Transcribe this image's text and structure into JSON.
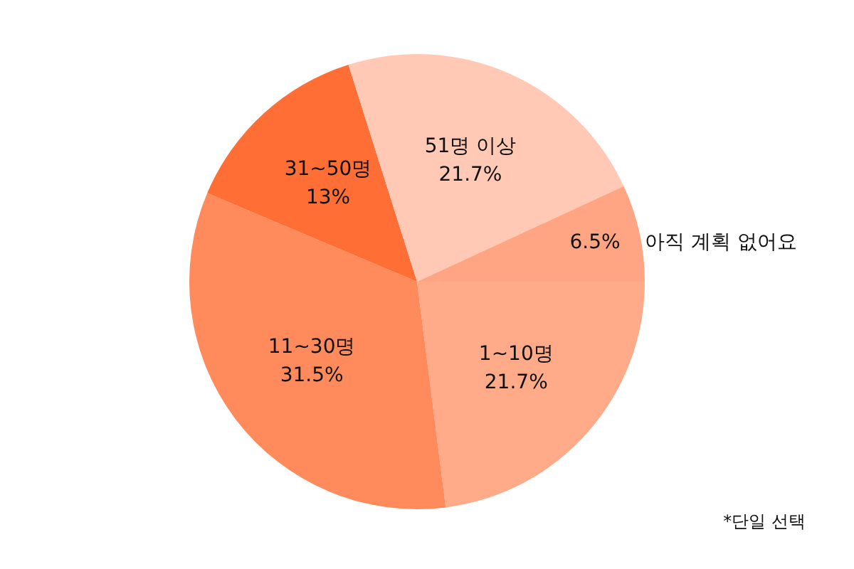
{
  "chart_data": {
    "type": "pie",
    "categories": [
      "1~10명",
      "11~30명",
      "31~50명",
      "51명 이상",
      "아직 계획 없어요"
    ],
    "values": [
      21.7,
      31.5,
      13,
      21.7,
      6.5
    ],
    "colors": [
      "#ffaa88",
      "#ff8a5c",
      "#ff6e35",
      "#ffc9b5",
      "#ffa584"
    ],
    "value_labels": [
      "21.7%",
      "31.5%",
      "13%",
      "21.7%",
      "6.5%"
    ],
    "annotations": [
      "*단일 선택"
    ]
  }
}
